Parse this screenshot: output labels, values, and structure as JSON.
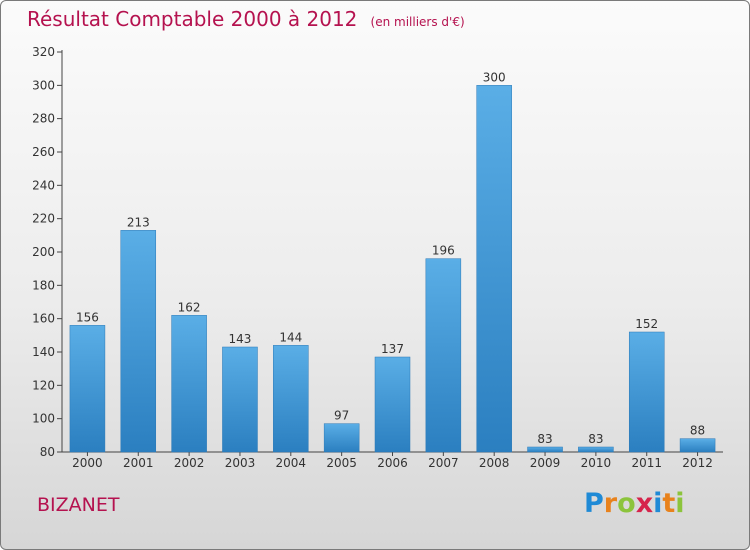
{
  "title": "Résultat Comptable 2000 à 2012",
  "unit": "(en milliers d'€)",
  "commune": "BIZANET",
  "logo": {
    "text": "Proxiti",
    "letters": [
      "P",
      "r",
      "o",
      "x",
      "i",
      "t",
      "i"
    ],
    "colors": [
      "#1f8ad6",
      "#e8821c",
      "#8cc43c",
      "#d6244b",
      "#1f8ad6",
      "#e8821c",
      "#8cc43c"
    ]
  },
  "chart_data": {
    "type": "bar",
    "title": "Résultat Comptable 2000 à 2012",
    "ylabel": "",
    "xlabel": "",
    "categories": [
      "2000",
      "2001",
      "2002",
      "2003",
      "2004",
      "2005",
      "2006",
      "2007",
      "2008",
      "2009",
      "2010",
      "2011",
      "2012"
    ],
    "values": [
      156,
      213,
      162,
      143,
      144,
      97,
      137,
      196,
      300,
      83,
      83,
      152,
      88
    ],
    "ylim": [
      80,
      320
    ],
    "yticks": [
      80,
      100,
      120,
      140,
      160,
      180,
      200,
      220,
      240,
      260,
      280,
      300,
      320
    ],
    "grid": false,
    "bar_color_top": "#5aaee6",
    "bar_color_bottom": "#2b7fc0"
  }
}
